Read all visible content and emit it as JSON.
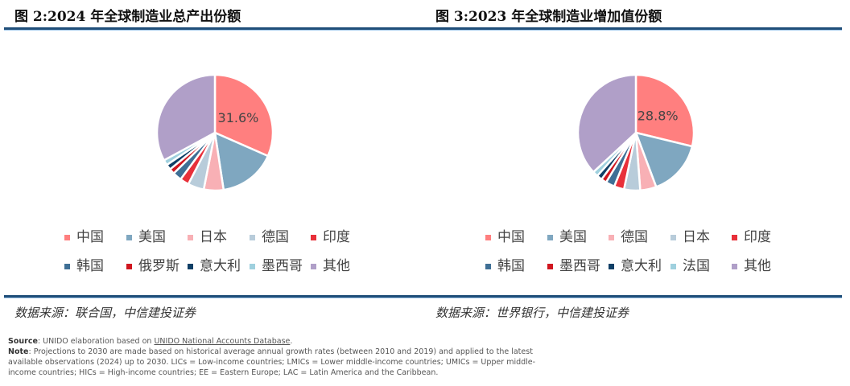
{
  "chart_data": [
    {
      "type": "pie",
      "title": "图 2:2024 年全球制造业总产出份额",
      "labels": [
        "中国",
        "美国",
        "日本",
        "德国",
        "印度",
        "韩国",
        "俄罗斯",
        "意大利",
        "墨西哥",
        "其他"
      ],
      "values": [
        31.6,
        16.0,
        5.5,
        4.5,
        2.5,
        2.5,
        1.5,
        1.5,
        1.5,
        32.9
      ],
      "colors": [
        "#ff7f7f",
        "#7fa7c0",
        "#f8b0b5",
        "#b8ccda",
        "#e8303a",
        "#3f6f95",
        "#d0161f",
        "#0f3f66",
        "#9fd0de",
        "#b09fc8"
      ],
      "data_label": "31.6%",
      "source": "数据来源：联合国，中信建投证券"
    },
    {
      "type": "pie",
      "title": "图 3:2023 年全球制造业增加值份额",
      "labels": [
        "中国",
        "美国",
        "德国",
        "日本",
        "印度",
        "韩国",
        "墨西哥",
        "意大利",
        "法国",
        "其他"
      ],
      "values": [
        28.8,
        15.5,
        4.5,
        4.5,
        2.8,
        2.5,
        1.5,
        1.5,
        1.5,
        36.9
      ],
      "colors": [
        "#ff7f7f",
        "#7fa7c0",
        "#f8b0b5",
        "#b8ccda",
        "#e8303a",
        "#3f6f95",
        "#d0161f",
        "#0f3f66",
        "#9fd0de",
        "#b09fc8"
      ],
      "data_label": "28.8%",
      "source": "数据来源：世界银行，中信建投证券"
    }
  ],
  "notes": {
    "source_label": "Source",
    "source_text": ": UNIDO elaboration based on ",
    "source_link": "UNIDO National Accounts Database",
    "source_end": ".",
    "note_label": "Note",
    "note_text": ": Projections to 2030 are made based on historical average annual growth rates (between 2010 and 2019) and applied to the latest available observations (2024) up to 2030. LICs = Low-income countries; LMICs = Lower middle-income countries; UMICs = Upper middle-income countries; HICs = High-income countries; EE = Eastern Europe; LAC = Latin America and the Caribbean."
  }
}
